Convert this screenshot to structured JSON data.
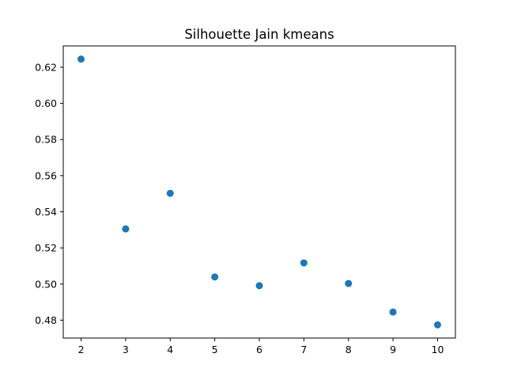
{
  "chart_data": {
    "type": "scatter",
    "title": "Silhouette Jain kmeans",
    "xlabel": "",
    "ylabel": "",
    "x": [
      2,
      3,
      4,
      5,
      6,
      7,
      8,
      9,
      10
    ],
    "y": [
      0.6245,
      0.5305,
      0.5502,
      0.5039,
      0.4991,
      0.5117,
      0.5003,
      0.4845,
      0.4774
    ],
    "xticks": [
      "2",
      "3",
      "4",
      "5",
      "6",
      "7",
      "8",
      "9",
      "10"
    ],
    "yticks": [
      "0.48",
      "0.50",
      "0.52",
      "0.54",
      "0.56",
      "0.58",
      "0.60",
      "0.62"
    ],
    "xlim": [
      1.6,
      10.4
    ],
    "ylim": [
      0.4701,
      0.6318
    ],
    "grid": false,
    "marker_color": "#1f77b4"
  }
}
